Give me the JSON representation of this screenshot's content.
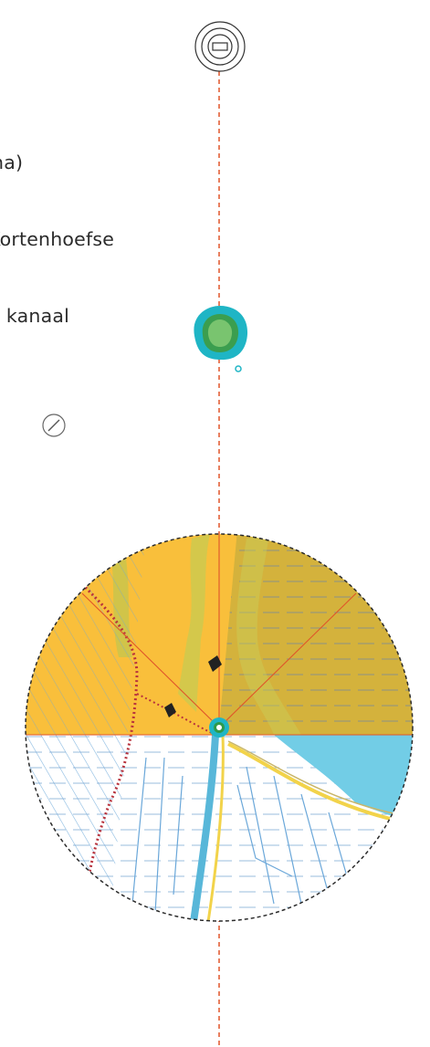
{
  "caption": {
    "line1": "na)",
    "line2": "Kortenhoefse",
    "line3": "g kanaal"
  },
  "colors": {
    "axis_line": "#e0552a",
    "nature_orange": "#f9bf3b",
    "nature_olive": "#d4b23c",
    "water_blue": "#72cde6",
    "teal_marker": "#1fb5c5",
    "green_marker": "#2f9a4a",
    "dashed_circle": "#2b2b2b",
    "path_red": "#b8333d",
    "road_yellow": "#f2d34a",
    "canal_blue": "#58b7d9"
  },
  "icons": {
    "top": "rectangle-in-concentric-circles-icon",
    "middle": "green-teal-blob-icon",
    "compass": "compass-icon"
  }
}
